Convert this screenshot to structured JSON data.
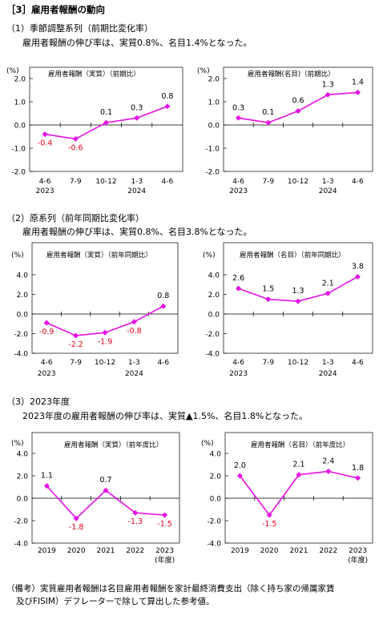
{
  "header": "［3］雇用者報酬の動向",
  "sections": [
    {
      "title": "（1）季節調整系列（前期比変化率）",
      "desc": "雇用者報酬の伸び率は、実質0.8%、名目1.4%となった。"
    },
    {
      "title": "（2）原系列（前年同期比変化率）",
      "desc": "雇用者報酬の伸び率は、実質0.8%、名目3.8%となった。"
    },
    {
      "title": "（3）2023年度",
      "desc": "2023年度の雇用者報酬の伸び率は、実質▲1.5%、名目1.8%となった。"
    }
  ],
  "note_line1": "（備考）実質雇用者報酬は名目雇用者報酬を家計最終消費支出（除く持ち家の帰属家賃",
  "note_line2": "及びFISIM）デフレーターで除して算出した参考値。",
  "colors": {
    "line": "#e60ee6",
    "negative_label": "#e8001c",
    "positive_label": "#000000",
    "axis": "#000000"
  },
  "chart_data": [
    {
      "type": "line",
      "title": "雇用者報酬（実質）（前期比）",
      "ylabel": "(%)",
      "categories": [
        "4-6",
        "7-9",
        "10-12",
        "1-3",
        "4-6"
      ],
      "year_labels": [
        "2023",
        "",
        "",
        "2024",
        ""
      ],
      "values": [
        -0.4,
        -0.6,
        0.1,
        0.3,
        0.8
      ],
      "data_labels": [
        "-0.4",
        "-0.6",
        "0.1",
        "0.3",
        "0.8"
      ],
      "yticks": [
        "2.0",
        "1.0",
        "0.0",
        "-1.0",
        "-2.0"
      ],
      "ylim": [
        -2,
        2
      ],
      "grid": false
    },
    {
      "type": "line",
      "title": "雇用者報酬(名目)（前期比）",
      "ylabel": "(%)",
      "categories": [
        "4-6",
        "7-9",
        "10-12",
        "1-3",
        "4-6"
      ],
      "year_labels": [
        "2023",
        "",
        "",
        "2024",
        ""
      ],
      "values": [
        0.3,
        0.1,
        0.6,
        1.3,
        1.4
      ],
      "data_labels": [
        "0.3",
        "0.1",
        "0.6",
        "1.3",
        "1.4"
      ],
      "yticks": [
        "2.0",
        "1.0",
        "0.0",
        "-1.0",
        "-2.0"
      ],
      "ylim": [
        -2,
        2
      ],
      "grid": false
    },
    {
      "type": "line",
      "title": "雇用者報酬（実質）（前年同期比）",
      "ylabel": "(%)",
      "categories": [
        "4-6",
        "7-9",
        "10-12",
        "1-3",
        "4-6"
      ],
      "year_labels": [
        "2023",
        "",
        "",
        "2024",
        ""
      ],
      "values": [
        -0.9,
        -2.2,
        -1.9,
        -0.8,
        0.8
      ],
      "data_labels": [
        "-0.9",
        "-2.2",
        "-1.9",
        "-0.8",
        "0.8"
      ],
      "yticks": [
        "4.0",
        "2.0",
        "0.0",
        "-2.0",
        "-4.0"
      ],
      "ylim": [
        -4,
        4
      ],
      "grid": false
    },
    {
      "type": "line",
      "title": "雇用者報酬（名目）（前年同期比）",
      "ylabel": "(%)",
      "categories": [
        "4-6",
        "7-9",
        "10-12",
        "1-3",
        "4-6"
      ],
      "year_labels": [
        "2023",
        "",
        "",
        "2024",
        ""
      ],
      "values": [
        2.6,
        1.5,
        1.3,
        2.1,
        3.8
      ],
      "data_labels": [
        "2.6",
        "1.5",
        "1.3",
        "2.1",
        "3.8"
      ],
      "yticks": [
        "4.0",
        "2.0",
        "0.0",
        "-2.0",
        "-4.0"
      ],
      "ylim": [
        -4,
        4
      ],
      "grid": false
    },
    {
      "type": "line",
      "title": "雇用者報酬（実質）（前年度比）",
      "ylabel": "(%)",
      "categories": [
        "2019",
        "2020",
        "2021",
        "2022",
        "2023"
      ],
      "year_labels": [
        "",
        "",
        "",
        "",
        "(年度)"
      ],
      "values": [
        1.1,
        -1.8,
        0.7,
        -1.3,
        -1.5
      ],
      "data_labels": [
        "1.1",
        "-1.8",
        "0.7",
        "-1.3",
        "-1.5"
      ],
      "yticks": [
        "4.0",
        "2.0",
        "0.0",
        "-2.0",
        "-4.0"
      ],
      "ylim": [
        -4,
        4
      ],
      "grid": false
    },
    {
      "type": "line",
      "title": "雇用者報酬（名目）（前年度比）",
      "ylabel": "(%)",
      "categories": [
        "2019",
        "2020",
        "2021",
        "2022",
        "2023"
      ],
      "year_labels": [
        "",
        "",
        "",
        "",
        "(年度)"
      ],
      "values": [
        2.0,
        -1.5,
        2.1,
        2.4,
        1.8
      ],
      "data_labels": [
        "2.0",
        "-1.5",
        "2.1",
        "2.4",
        "1.8"
      ],
      "yticks": [
        "4.0",
        "2.0",
        "0.0",
        "-2.0",
        "-4.0"
      ],
      "ylim": [
        -4,
        4
      ],
      "grid": false
    }
  ]
}
